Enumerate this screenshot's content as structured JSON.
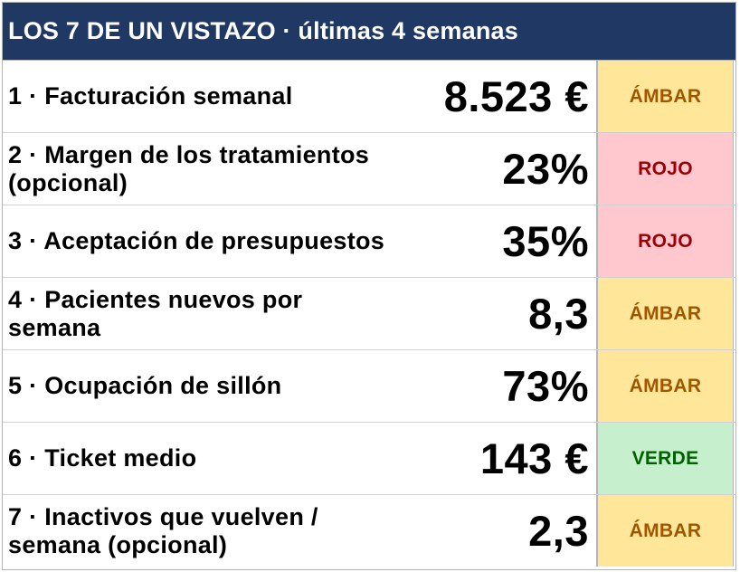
{
  "title": "LOS 7 DE UN VISTAZO · últimas 4 semanas",
  "colors": {
    "header_bg": "#1f3864",
    "ambar_bg": "#ffe699",
    "ambar_text": "#9c5700",
    "rojo_bg": "#ffc7ce",
    "rojo_text": "#9c0006",
    "verde_bg": "#c6efce",
    "verde_text": "#006100"
  },
  "kpis": [
    {
      "label": "1 · Facturación semanal",
      "value": "8.523 €",
      "status": "ÁMBAR",
      "status_class": "status-ambar"
    },
    {
      "label": "2 · Margen de los tratamientos (opcional)",
      "value": "23%",
      "status": "ROJO",
      "status_class": "status-rojo"
    },
    {
      "label": "3 · Aceptación de presupuestos",
      "value": "35%",
      "status": "ROJO",
      "status_class": "status-rojo"
    },
    {
      "label": "4 · Pacientes nuevos por semana",
      "value": "8,3",
      "status": "ÁMBAR",
      "status_class": "status-ambar"
    },
    {
      "label": "5 · Ocupación de sillón",
      "value": "73%",
      "status": "ÁMBAR",
      "status_class": "status-ambar"
    },
    {
      "label": "6 · Ticket medio",
      "value": "143 €",
      "status": "VERDE",
      "status_class": "status-verde"
    },
    {
      "label": "7 · Inactivos que vuelven / semana (opcional)",
      "value": "2,3",
      "status": "ÁMBAR",
      "status_class": "status-ambar"
    }
  ]
}
